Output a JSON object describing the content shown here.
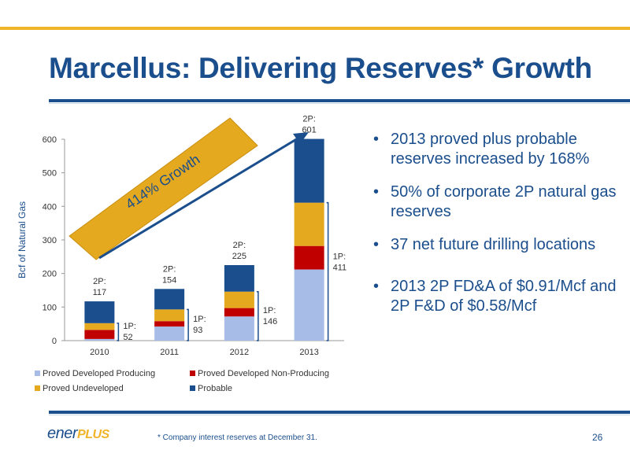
{
  "slide": {
    "title": "Marcellus: Delivering Reserves* Growth",
    "bullets": [
      "2013 proved plus probable reserves increased by 168%",
      "50% of corporate 2P natural gas reserves",
      "37 net future drilling locations",
      "2013 2P FD&A of $0.91/Mcf and 2P F&D of $0.58/Mcf"
    ],
    "footnote": "* Company interest reserves at December 31.",
    "page_number": "26",
    "logo": {
      "part1": "ener",
      "part2": "PLUS"
    }
  },
  "colors": {
    "accent_blue": "#1b4e8c",
    "accent_gold": "#f0b429",
    "series_pdp": "#a7bde8",
    "series_pdnp": "#c00000",
    "series_pud": "#e4a91f",
    "series_probable": "#1b4e8c"
  },
  "chart_data": {
    "type": "bar",
    "stacked": true,
    "categories": [
      "2010",
      "2011",
      "2012",
      "2013"
    ],
    "series": [
      {
        "name": "Proved Developed Producing",
        "values": [
          5,
          42,
          72,
          212
        ]
      },
      {
        "name": "Proved Developed Non-Producing",
        "values": [
          27,
          16,
          25,
          70
        ]
      },
      {
        "name": "Proved Undeveloped",
        "values": [
          20,
          35,
          49,
          129
        ]
      },
      {
        "name": "Probable",
        "values": [
          65,
          61,
          79,
          190
        ]
      }
    ],
    "ylabel": "Bcf of Natural Gas",
    "ylim": [
      0,
      600
    ],
    "yticks": [
      0,
      100,
      200,
      300,
      400,
      500,
      600
    ],
    "legend_position": "bottom",
    "two_p_labels": [
      "2P:\n117",
      "2P:\n154",
      "2P:\n225",
      "2P:\n601"
    ],
    "one_p_labels": [
      "1P:\n52",
      "1P:\n93",
      "1P:\n146",
      "1P:\n411"
    ],
    "growth_label": "414% Growth"
  }
}
